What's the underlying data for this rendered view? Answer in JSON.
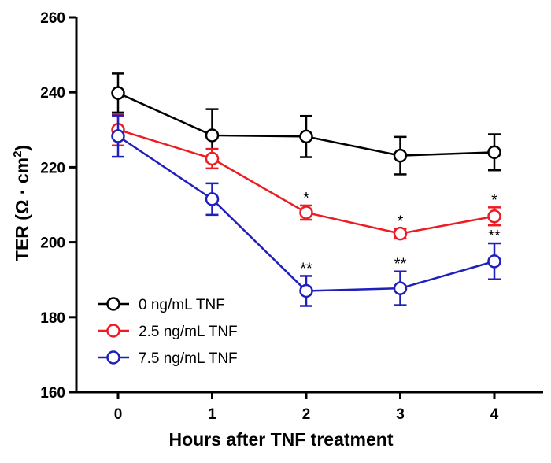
{
  "chart_data": {
    "type": "line",
    "title": "",
    "xlabel": "Hours after TNF treatment",
    "ylabel": "TER (Ω · cm²)",
    "ylabel_main": "TER (Ω · cm",
    "ylabel_sup": "2",
    "ylabel_close": ")",
    "x": [
      0,
      1,
      2,
      3,
      4
    ],
    "xticks": [
      "0",
      "1",
      "2",
      "3",
      "4"
    ],
    "xlim": [
      -0.5,
      4.5
    ],
    "ylim": [
      160,
      260
    ],
    "yticks": [
      "160",
      "180",
      "200",
      "220",
      "240",
      "260"
    ],
    "legend_position": "bottom-left",
    "series": [
      {
        "name": "0 ng/mL TNF",
        "color": "#000000",
        "values": [
          239.8,
          228.5,
          228.2,
          223.1,
          224.0
        ],
        "errors": [
          5.2,
          7.0,
          5.5,
          5.0,
          4.8
        ],
        "annotations": [
          "",
          "",
          "",
          "",
          ""
        ]
      },
      {
        "name": "2.5 ng/mL TNF",
        "color": "#ed1c24",
        "values": [
          230.0,
          222.3,
          207.9,
          202.3,
          206.9
        ],
        "errors": [
          4.2,
          2.6,
          1.9,
          1.3,
          2.4
        ],
        "annotations": [
          "",
          "",
          "*",
          "*",
          "*"
        ]
      },
      {
        "name": "7.5 ng/mL TNF",
        "color": "#1f1fbd",
        "values": [
          228.3,
          211.5,
          187.0,
          187.7,
          194.9
        ],
        "errors": [
          5.5,
          4.2,
          4.0,
          4.5,
          4.8
        ],
        "annotations": [
          "",
          "",
          "**",
          "**",
          "**"
        ]
      }
    ]
  }
}
